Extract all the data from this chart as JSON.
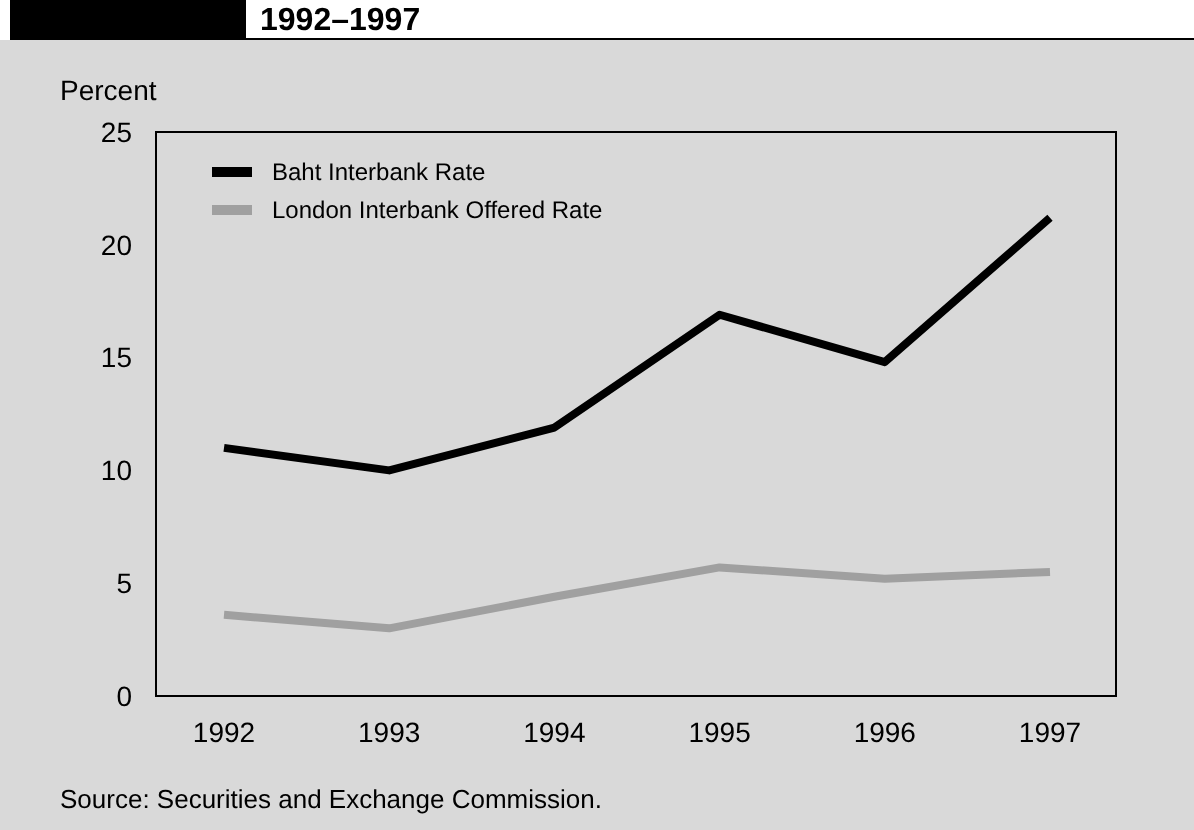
{
  "chart_data": {
    "type": "line",
    "title": "1992–1997",
    "ylabel": "Percent",
    "categories": [
      "1992",
      "1993",
      "1994",
      "1995",
      "1996",
      "1997"
    ],
    "series": [
      {
        "name": "Baht Interbank Rate",
        "color": "#000000",
        "values": [
          11.0,
          10.0,
          11.9,
          16.9,
          14.8,
          21.2
        ]
      },
      {
        "name": "London Interbank Offered Rate",
        "color": "#a0a0a0",
        "values": [
          3.6,
          3.0,
          4.4,
          5.7,
          5.2,
          5.5
        ]
      }
    ],
    "ylim": [
      0,
      25
    ],
    "yticks": [
      0,
      5,
      10,
      15,
      20,
      25
    ],
    "grid": false,
    "legend": "top left",
    "marker": "none",
    "line_style": "solid",
    "annotations": [
      "Source: Securities and Exchange Commission."
    ]
  }
}
